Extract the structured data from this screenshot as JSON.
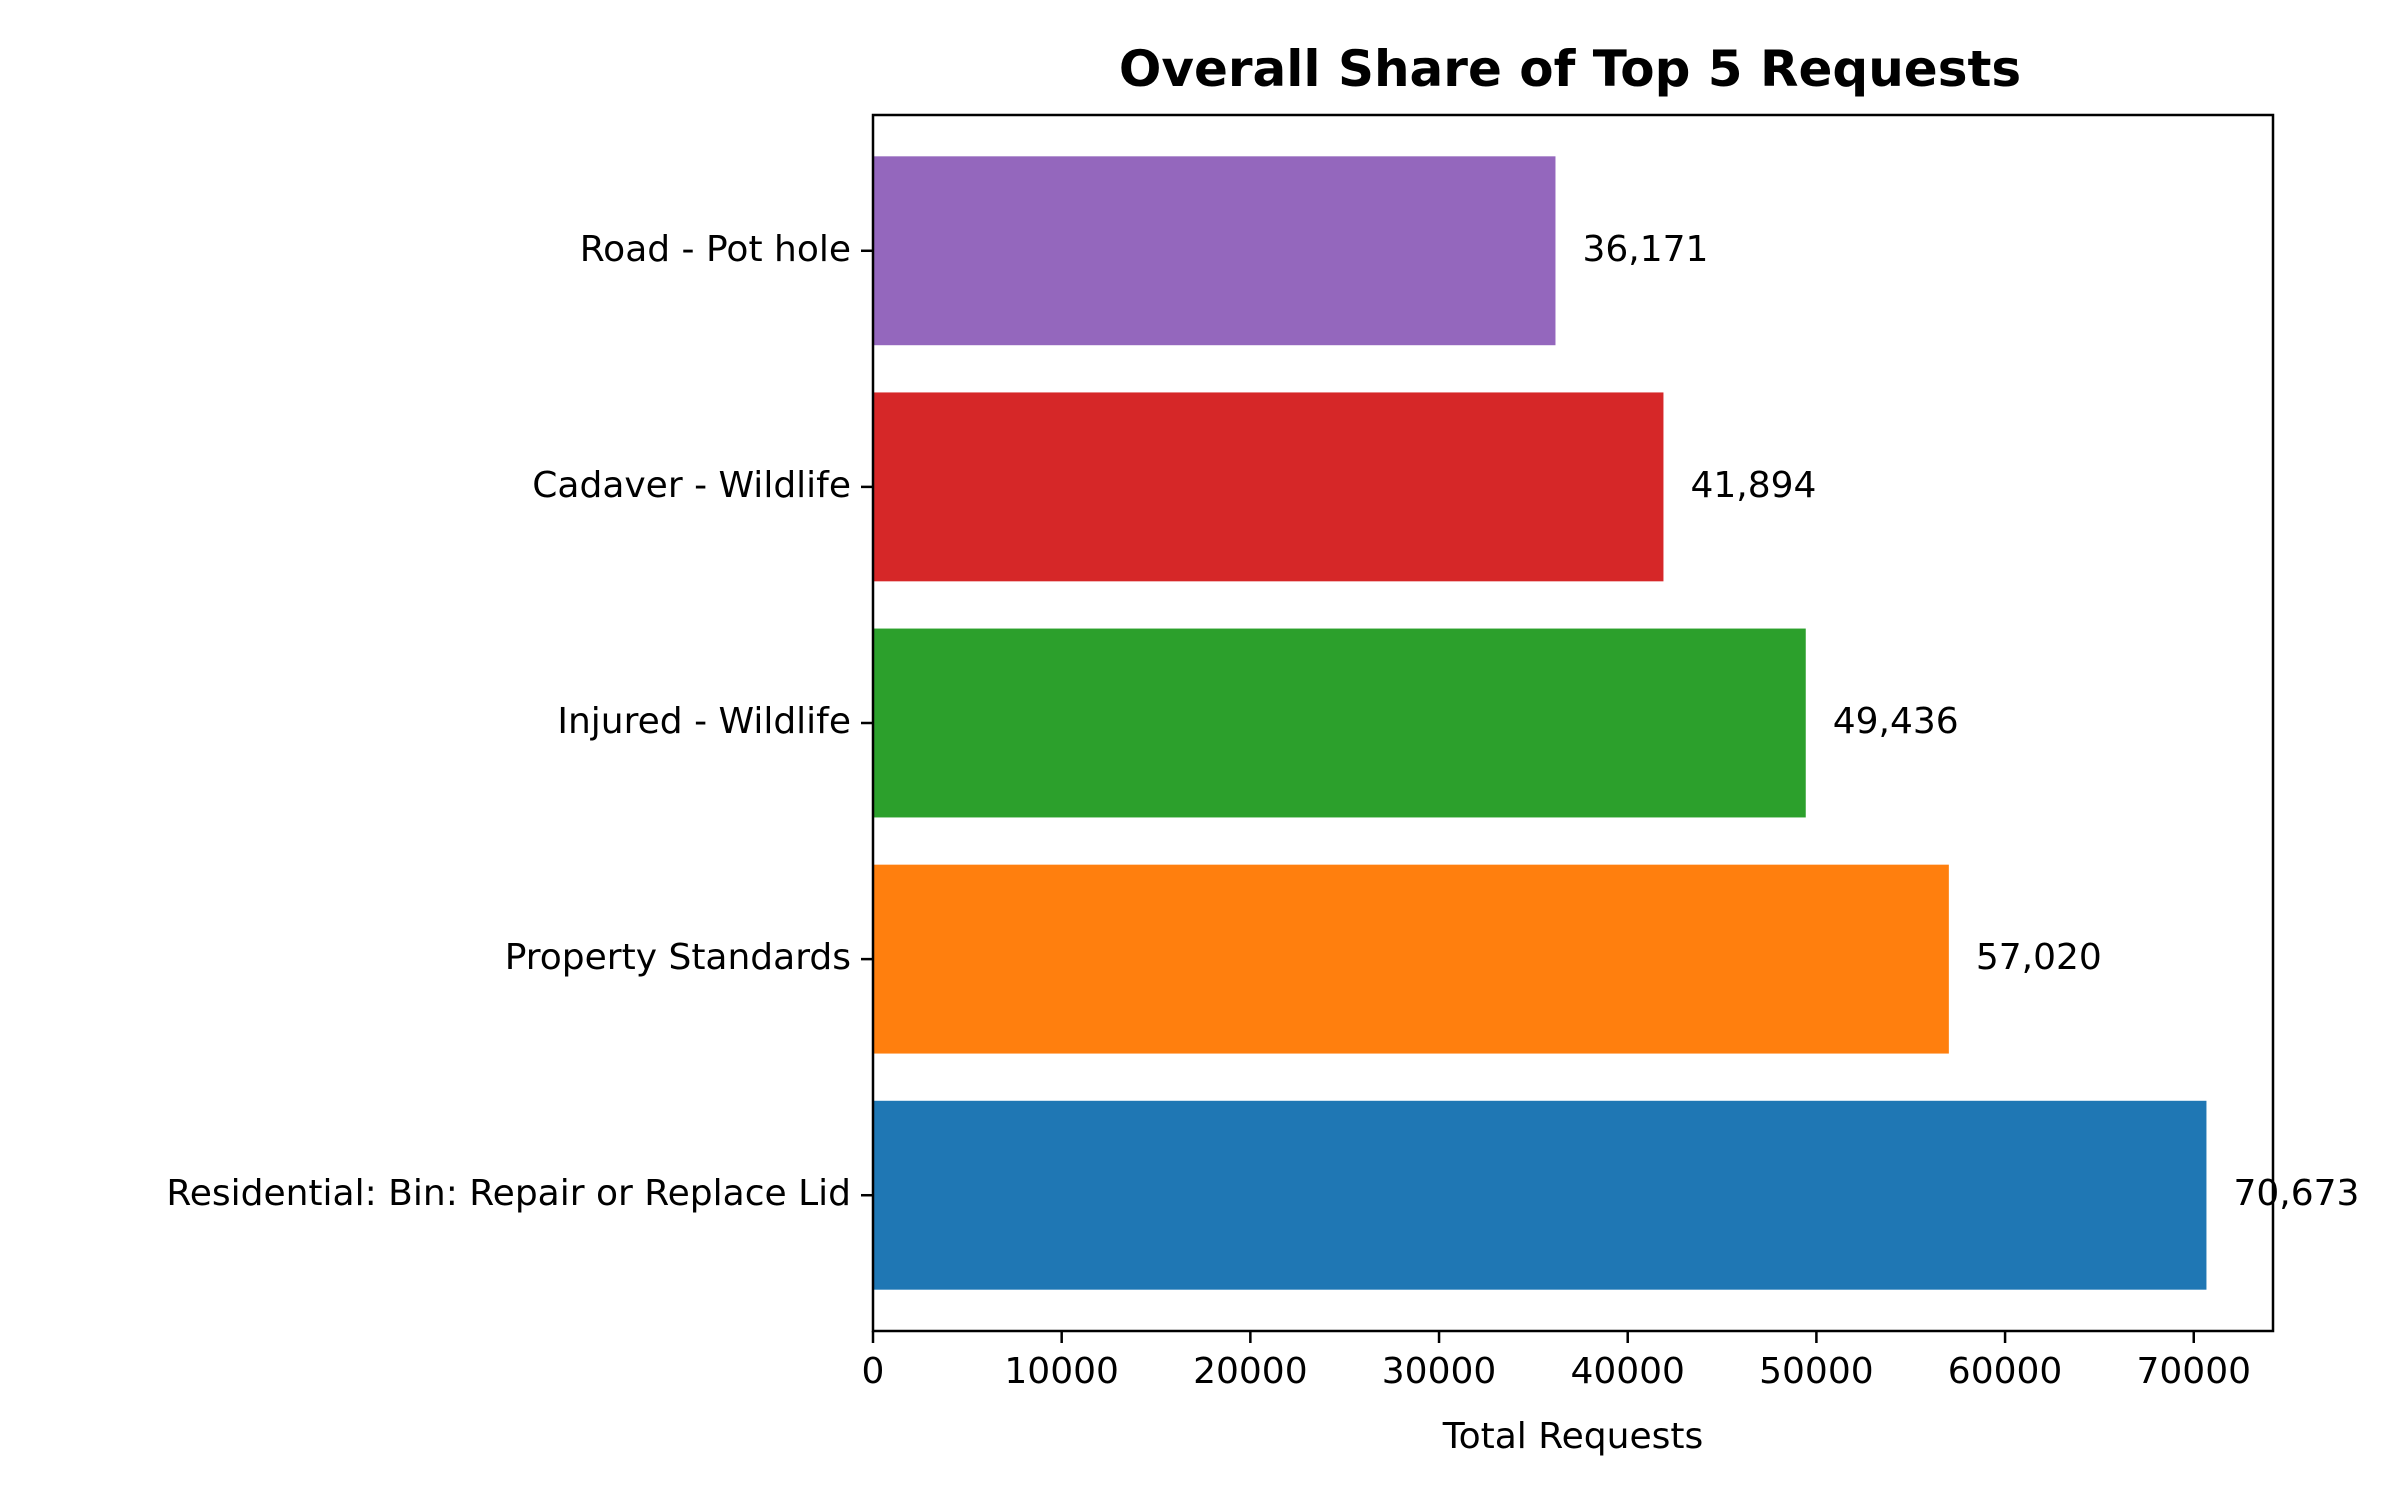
{
  "chart_data": {
    "type": "bar",
    "orientation": "horizontal",
    "title": "Overall Share of Top 5 Requests",
    "xlabel": "Total Requests",
    "ylabel": "",
    "xlim": [
      0,
      74200
    ],
    "xticks": [
      0,
      10000,
      20000,
      30000,
      40000,
      50000,
      60000,
      70000
    ],
    "xtick_labels": [
      "0",
      "10000",
      "20000",
      "30000",
      "40000",
      "50000",
      "60000",
      "70000"
    ],
    "grid": false,
    "legend": "none",
    "categories": [
      "Residential: Bin: Repair or Replace Lid",
      "Property Standards",
      "Injured - Wildlife",
      "Cadaver - Wildlife",
      "Road - Pot hole"
    ],
    "values": [
      70673,
      57020,
      49436,
      41894,
      36171
    ],
    "value_labels": [
      "70,673",
      "57,020",
      "49,436",
      "41,894",
      "36,171"
    ],
    "colors": [
      "#1f77b4",
      "#ff7f0e",
      "#2ca02c",
      "#d62728",
      "#9467bd"
    ]
  }
}
